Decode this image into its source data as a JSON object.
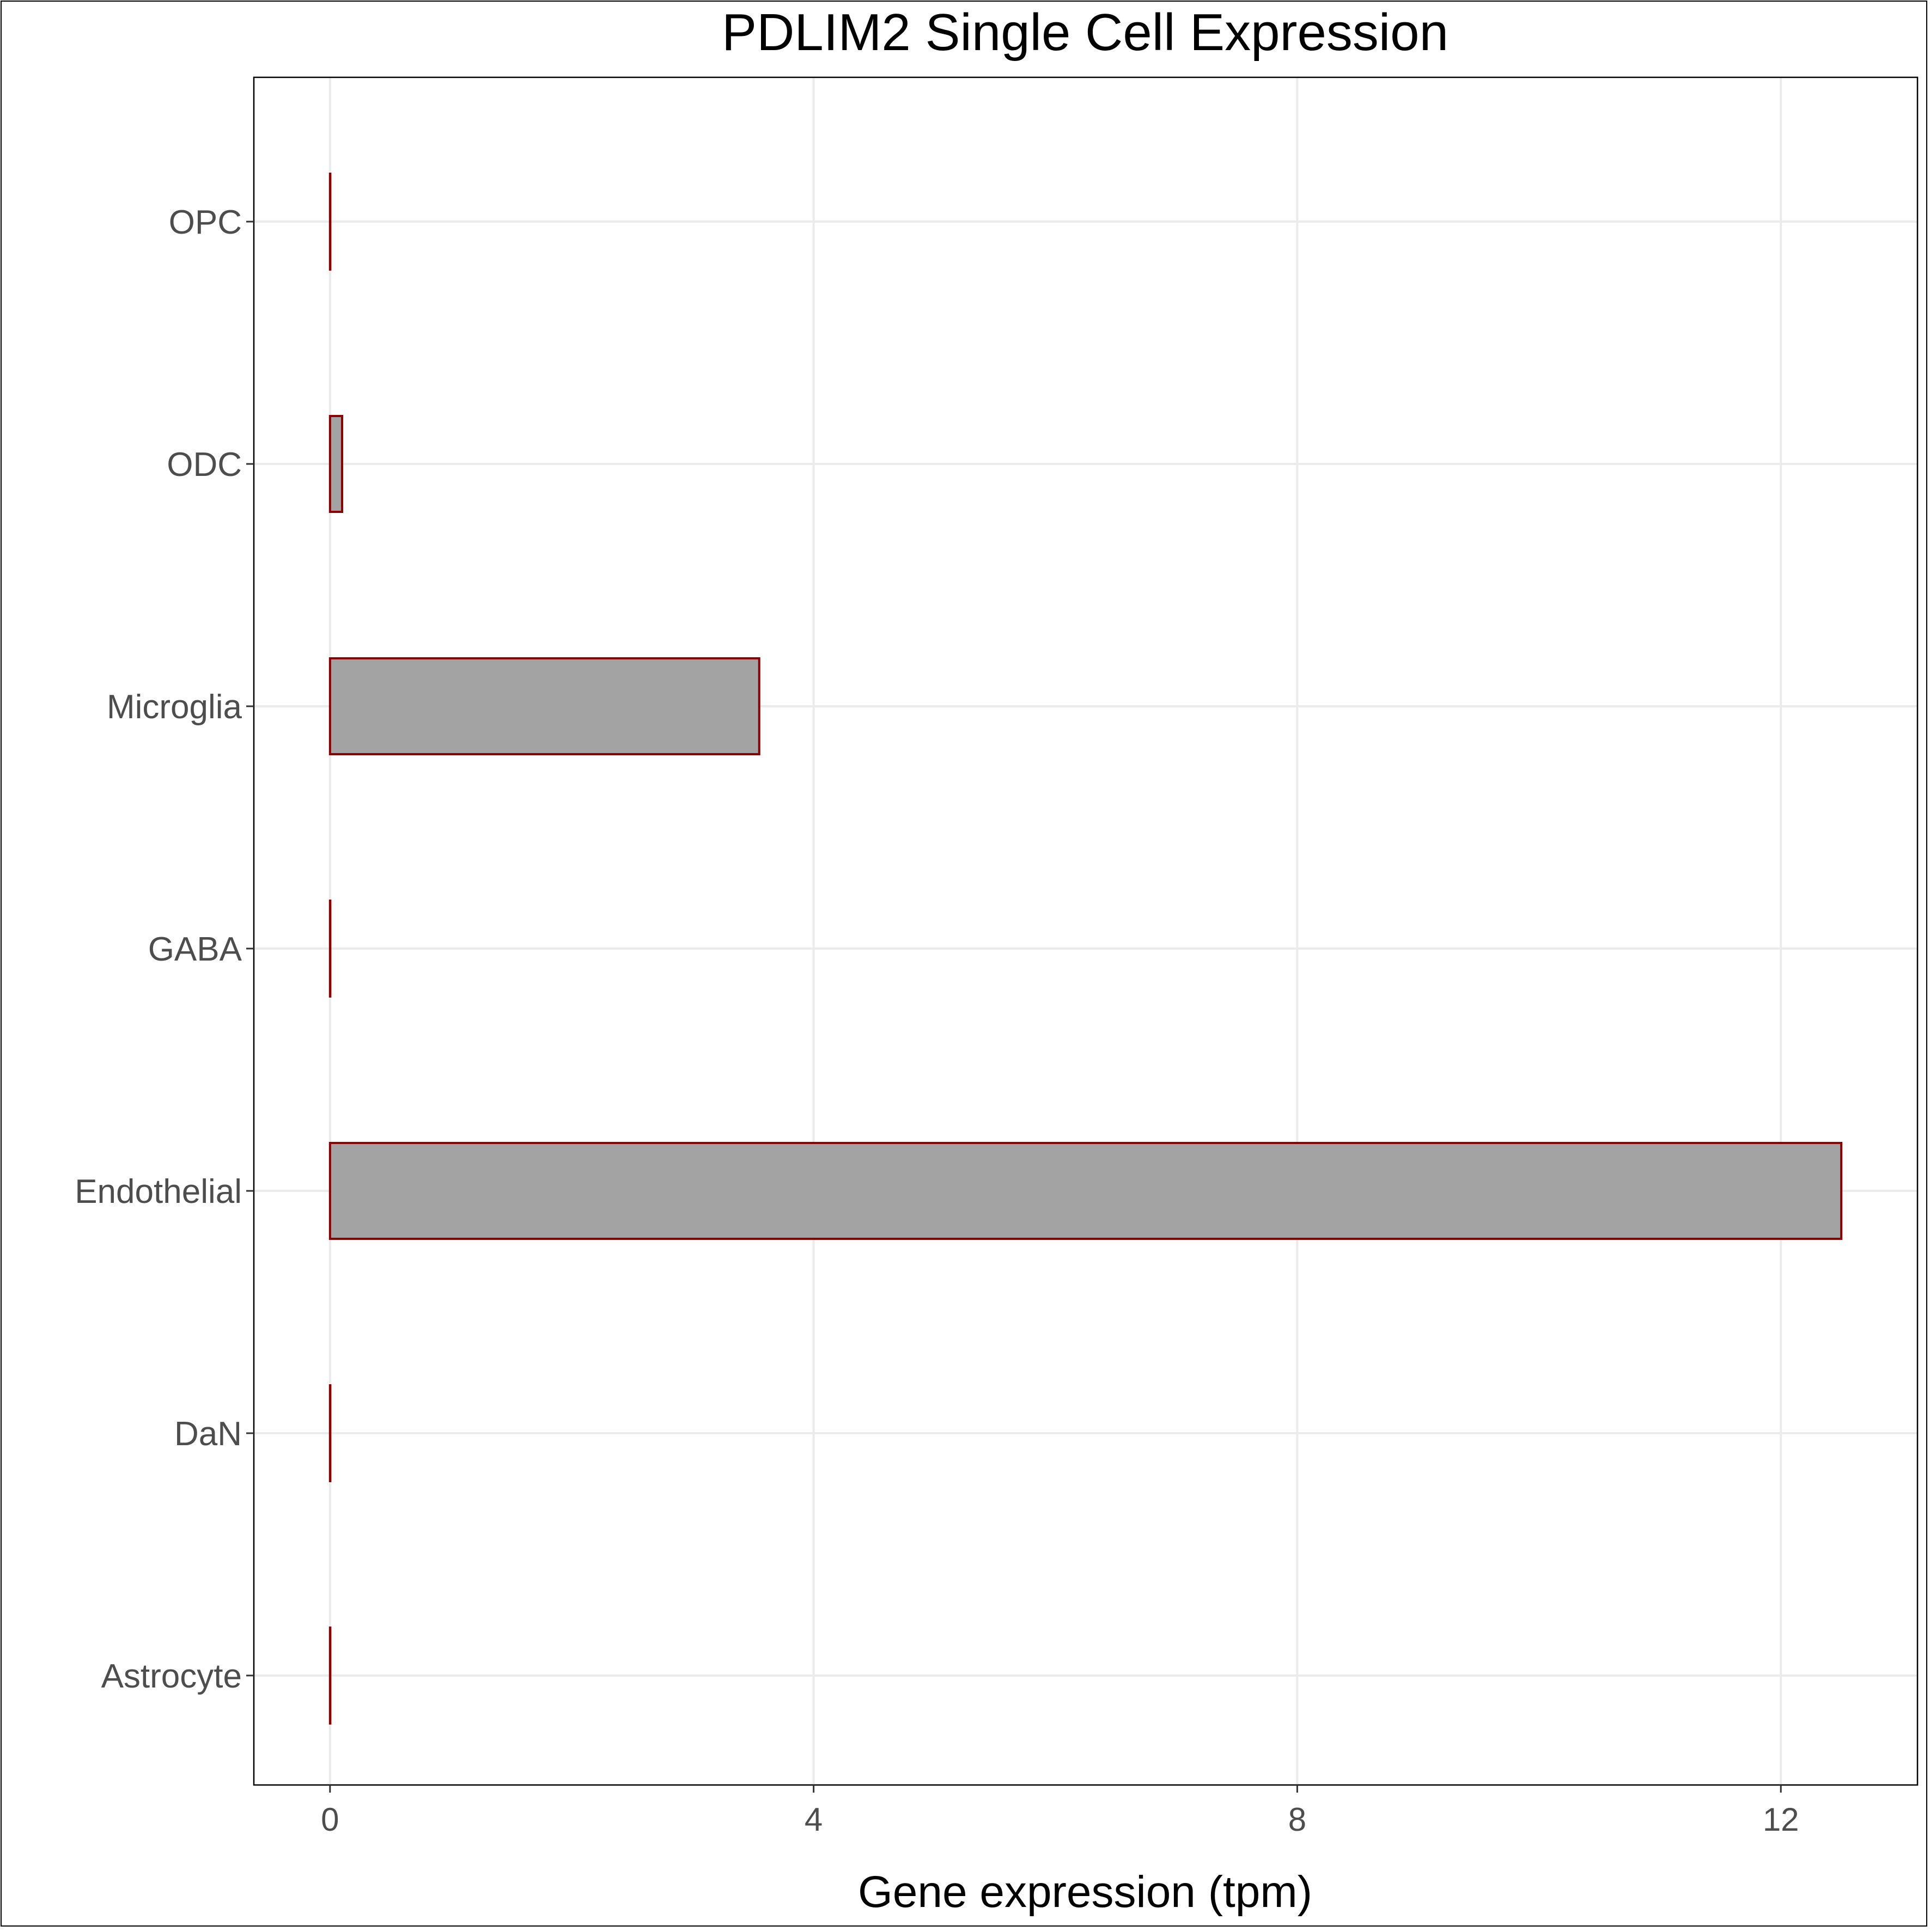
{
  "chart_data": {
    "type": "bar",
    "orientation": "horizontal",
    "title": "PDLIM2 Single Cell Expression",
    "xlabel": "Gene expression (tpm)",
    "ylabel": "",
    "categories": [
      "Astrocyte",
      "DaN",
      "Endothelial",
      "GABA",
      "Microglia",
      "ODC",
      "OPC"
    ],
    "values": [
      0,
      0,
      12.5,
      0,
      3.55,
      0.1,
      0
    ],
    "xlim": [
      -0.63,
      13.13
    ],
    "xticks": [
      0,
      4,
      8,
      12
    ],
    "xtick_labels": [
      "0",
      "4",
      "8",
      "12"
    ],
    "grid": true,
    "colors": {
      "bar_fill": "#a3a3a3",
      "bar_stroke": "#8b0000",
      "grid": "#ebebeb",
      "axis": "#000000"
    }
  }
}
